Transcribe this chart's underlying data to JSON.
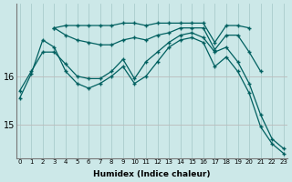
{
  "xlabel": "Humidex (Indice chaleur)",
  "bg_color": "#cce8e8",
  "line_color": "#006060",
  "grid_color_major": "#aaaaaa",
  "grid_color_minor": "#ccdddd",
  "yticks": [
    15,
    16
  ],
  "xticks": [
    0,
    1,
    2,
    3,
    4,
    5,
    6,
    7,
    8,
    9,
    10,
    11,
    12,
    13,
    14,
    15,
    16,
    17,
    18,
    19,
    20,
    21,
    22,
    23
  ],
  "ylim": [
    14.3,
    17.5
  ],
  "xlim": [
    -0.3,
    23.3
  ],
  "series": [
    {
      "x": [
        3,
        4,
        5,
        6,
        7,
        8,
        9,
        10,
        11,
        12,
        13,
        14,
        15,
        16,
        17,
        18,
        19,
        20
      ],
      "y": [
        17.0,
        17.05,
        17.05,
        17.05,
        17.05,
        17.05,
        17.1,
        17.1,
        17.05,
        17.1,
        17.1,
        17.1,
        17.1,
        17.1,
        16.7,
        17.05,
        17.05,
        17.0
      ]
    },
    {
      "x": [
        3,
        4,
        5,
        6,
        7,
        8,
        9,
        10,
        11,
        12,
        13,
        14,
        15,
        16,
        17,
        18,
        19,
        20,
        21
      ],
      "y": [
        17.0,
        16.85,
        16.75,
        16.7,
        16.65,
        16.65,
        16.75,
        16.8,
        16.75,
        16.85,
        16.9,
        17.0,
        17.0,
        17.0,
        16.55,
        16.85,
        16.85,
        16.5,
        16.1
      ]
    },
    {
      "x": [
        0,
        1,
        2,
        3,
        4,
        5,
        6,
        7,
        8,
        9,
        10,
        11,
        12,
        13,
        14,
        15,
        16,
        17,
        18,
        19,
        20,
        21,
        22,
        23
      ],
      "y": [
        15.7,
        16.1,
        16.5,
        16.5,
        16.25,
        16.0,
        15.95,
        15.95,
        16.1,
        16.35,
        15.95,
        16.3,
        16.5,
        16.7,
        16.85,
        16.9,
        16.8,
        16.5,
        16.6,
        16.3,
        15.85,
        15.2,
        14.7,
        14.5
      ]
    },
    {
      "x": [
        0,
        1,
        2,
        3,
        4,
        5,
        6,
        7,
        8,
        9,
        10,
        11,
        12,
        13,
        14,
        15,
        16,
        17,
        18,
        19,
        20,
        21,
        22,
        23
      ],
      "y": [
        15.55,
        16.05,
        16.75,
        16.6,
        16.1,
        15.85,
        15.75,
        15.85,
        16.0,
        16.2,
        15.85,
        16.0,
        16.3,
        16.6,
        16.75,
        16.8,
        16.7,
        16.2,
        16.4,
        16.1,
        15.65,
        14.95,
        14.6,
        14.4
      ]
    }
  ]
}
